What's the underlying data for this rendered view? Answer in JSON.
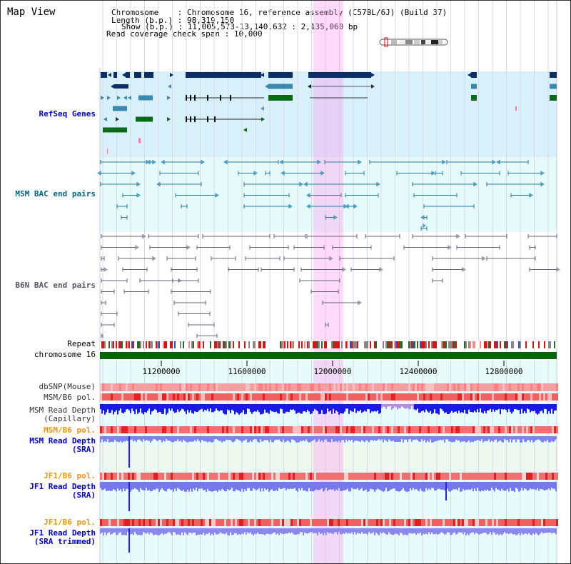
{
  "view_title": "Map View",
  "info": {
    "chromosome_key": "Chromosome",
    "chromosome_val": "Chromosome 16, reference assembly (C57BL/6J) (Build 37)",
    "length_key": "Length (b.p.)",
    "length_val": "98,319,150",
    "show_key": "Show (b.p.)",
    "show_val": "11,005,573-13,140,632 : 2,135,060 bp",
    "span_key": "Read coverage check span",
    "span_val": "10,000"
  },
  "track_labels": {
    "refseq": "RefSeq Genes",
    "msm_bac": "MSM BAC end pairs",
    "b6n_bac": "B6N BAC end pairs",
    "repeat": "Repeat",
    "chromosome": "chromosome 16",
    "dbsnp": "dbSNP(Mouse)",
    "msm_b6_pol_1": "MSM/B6 pol.",
    "msm_depth_cap": "MSM Read Depth\n(Capillary)",
    "msm_b6_pol_2": "MSM/B6 pol.",
    "msm_depth_sra": "MSM Read Depth\n(SRA)",
    "jf1_b6_pol_1": "JF1/B6 pol.",
    "jf1_depth_sra": "JF1 Read Depth\n(SRA)",
    "jf1_b6_pol_2": "JF1/B6 pol.",
    "jf1_depth_trim": "JF1 Read Depth\n(SRA trimmed)"
  },
  "axis_ticks": [
    "11200000",
    "11600000",
    "12000000",
    "12400000",
    "12800000"
  ],
  "colors": {
    "refseq_label": "#0000cc",
    "msm_label": "#006688",
    "b6n_label": "#555566",
    "orange_label": "#ee9900",
    "blue_label": "#0000cc",
    "highlight": "#ff99ee",
    "refseq_bg": "#d8f0fa",
    "msm_bg": "#e6fafa",
    "chromosome_bar": "#006600",
    "depth_blue": "#2222ee",
    "depth_light": "#7f7ff0"
  }
}
